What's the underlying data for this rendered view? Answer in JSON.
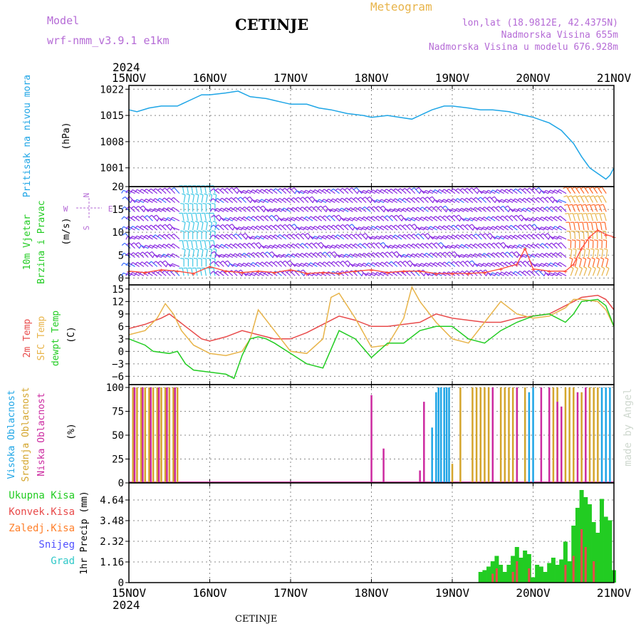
{
  "header": {
    "model_label": "Model",
    "model_name": "wrf-nmm_v3.9.1 e1km",
    "station": "CETINJE",
    "title": "Meteogram",
    "coords": "lon,lat (18.9812E, 42.4375N)",
    "elevation": "Nadmorska Visina 655m",
    "elevation_model": "Nadmorska Visina u modelu 676.928m",
    "footer": "CETINJE",
    "credit": "made by Angel"
  },
  "colors": {
    "pressure": "#1ea5e6",
    "wind_speed": "#ff4a3a",
    "wind_barb": "#8a2be2",
    "wind_barb_alt": "#3a6dff",
    "wind_barb_light": "#3fc8e6",
    "temp2m": "#e84a4a",
    "sfc_temp": "#e8b44a",
    "dewpoint": "#22cc22",
    "cloud_high": "#1ea5e6",
    "cloud_mid": "#d4a52c",
    "cloud_low": "#cc2aa0",
    "precip_total": "#22cc22",
    "precip_conv": "#e84a4a",
    "snow": "#5050ff",
    "label_purple": "#b56bd6"
  },
  "chart_data": {
    "type": "line",
    "x_year": "2024",
    "x_ticks": [
      "15NOV",
      "16NOV",
      "17NOV",
      "18NOV",
      "19NOV",
      "20NOV",
      "21NOV"
    ],
    "x_range_days": [
      0,
      6
    ],
    "panels": [
      {
        "id": "pressure",
        "ylabel": "Pritisak na nivou mora",
        "unit": "(hPa)",
        "ylim": [
          996,
          1023
        ],
        "yticks": [
          1001,
          1008,
          1015,
          1022
        ],
        "series": [
          {
            "name": "Pritisak na nivou mora",
            "x": [
              0,
              0.1,
              0.25,
              0.4,
              0.6,
              0.75,
              0.9,
              1.0,
              1.2,
              1.35,
              1.5,
              1.7,
              1.9,
              2.0,
              2.2,
              2.35,
              2.5,
              2.7,
              2.9,
              3.0,
              3.2,
              3.35,
              3.5,
              3.6,
              3.75,
              3.9,
              4.0,
              4.2,
              4.35,
              4.5,
              4.7,
              4.9,
              5.0,
              5.2,
              5.35,
              5.5,
              5.6,
              5.7,
              5.8,
              5.9,
              5.95,
              6.0
            ],
            "values": [
              1016.5,
              1016,
              1017,
              1017.5,
              1017.5,
              1019,
              1020.5,
              1020.5,
              1021,
              1021.5,
              1020,
              1019.5,
              1018.5,
              1018,
              1018,
              1017,
              1016.5,
              1015.5,
              1015,
              1014.5,
              1015,
              1014.5,
              1014,
              1015,
              1016.5,
              1017.5,
              1017.5,
              1017,
              1016.5,
              1016.5,
              1016,
              1015,
              1014.5,
              1013,
              1011,
              1007.5,
              1004,
              1001,
              999.5,
              998,
              999,
              1001
            ]
          }
        ]
      },
      {
        "id": "wind",
        "ylabel": "10m Vjetar Brzina i Pravac",
        "unit": "(m/s)",
        "ylim": [
          -1.5,
          20
        ],
        "yticks": [
          0,
          5,
          10,
          15,
          20
        ],
        "compass": [
          "N",
          "W",
          "E",
          "S"
        ],
        "series": [
          {
            "name": "Brzina",
            "x": [
              0,
              0.2,
              0.4,
              0.6,
              0.8,
              1.0,
              1.2,
              1.4,
              1.6,
              1.8,
              2.0,
              2.2,
              2.4,
              2.6,
              2.8,
              3.0,
              3.2,
              3.4,
              3.6,
              3.8,
              4.0,
              4.2,
              4.4,
              4.6,
              4.8,
              4.9,
              5.0,
              5.2,
              5.4,
              5.5,
              5.6,
              5.7,
              5.8,
              5.9,
              6.0
            ],
            "values": [
              1.5,
              1.2,
              1.8,
              1.5,
              1.0,
              2.5,
              1.5,
              1.2,
              1.5,
              1.2,
              1.8,
              1.0,
              1.2,
              1.0,
              1.5,
              1.8,
              1.2,
              1.5,
              1.5,
              1.0,
              1.0,
              1.0,
              1.2,
              2.0,
              3.0,
              6.5,
              2.0,
              1.5,
              1.5,
              3,
              6.5,
              9,
              10.5,
              9.5,
              9.0
            ]
          }
        ]
      },
      {
        "id": "temperature",
        "ylabel": "2m Temp SFC Temp dewpt Temp",
        "unit": "(C)",
        "ylim": [
          -8,
          16
        ],
        "yticks": [
          -6,
          -3,
          0,
          3,
          6,
          9,
          12,
          15
        ],
        "series": [
          {
            "name": "2m Temp",
            "x": [
              0,
              0.2,
              0.4,
              0.5,
              0.7,
              0.9,
              1.0,
              1.2,
              1.4,
              1.6,
              1.8,
              2.0,
              2.2,
              2.4,
              2.6,
              2.8,
              3.0,
              3.2,
              3.4,
              3.6,
              3.8,
              4.0,
              4.2,
              4.4,
              4.6,
              4.8,
              5.0,
              5.2,
              5.4,
              5.5,
              5.6,
              5.8,
              5.9,
              6.0
            ],
            "values": [
              5.5,
              6.5,
              8,
              9,
              6,
              3,
              2.5,
              3.5,
              5,
              4,
              3,
              3,
              4.5,
              6.5,
              8.5,
              7.5,
              6,
              6,
              6.5,
              7,
              9,
              8,
              7.5,
              7,
              7,
              8,
              8.5,
              9,
              11,
              12,
              13,
              13.5,
              12.5,
              10
            ]
          },
          {
            "name": "SFC Temp",
            "x": [
              0,
              0.2,
              0.35,
              0.45,
              0.55,
              0.65,
              0.8,
              1.0,
              1.2,
              1.4,
              1.5,
              1.6,
              1.8,
              2.0,
              2.2,
              2.4,
              2.5,
              2.6,
              2.8,
              3.0,
              3.2,
              3.4,
              3.5,
              3.6,
              3.8,
              4.0,
              4.2,
              4.4,
              4.6,
              4.8,
              5.0,
              5.2,
              5.4,
              5.5,
              5.6,
              5.8,
              5.9,
              6.0
            ],
            "values": [
              4,
              5,
              8,
              11.5,
              9,
              5,
              1.5,
              -0.5,
              -1,
              0,
              3,
              10,
              5,
              0,
              -0.5,
              3,
              13,
              14,
              8,
              1,
              1.5,
              8,
              15.5,
              12,
              7,
              3,
              2,
              7,
              12,
              9,
              8,
              8.5,
              10.5,
              12.5,
              12.5,
              12,
              10,
              6
            ]
          },
          {
            "name": "dewpt Temp",
            "x": [
              0,
              0.2,
              0.3,
              0.5,
              0.6,
              0.7,
              0.8,
              1.0,
              1.2,
              1.3,
              1.4,
              1.5,
              1.6,
              1.7,
              1.8,
              2.0,
              2.2,
              2.4,
              2.5,
              2.6,
              2.8,
              3.0,
              3.2,
              3.4,
              3.6,
              3.8,
              4.0,
              4.2,
              4.4,
              4.6,
              4.8,
              5.0,
              5.2,
              5.4,
              5.5,
              5.6,
              5.8,
              5.9,
              6.0
            ],
            "values": [
              3,
              1.5,
              0,
              -0.5,
              0,
              -3,
              -4.5,
              -5,
              -5.5,
              -6.5,
              -1,
              3,
              3.5,
              3,
              2,
              -0.5,
              -3,
              -4,
              0.5,
              5,
              3,
              -1.5,
              2,
              2,
              5,
              6,
              6,
              3,
              2,
              5,
              7,
              8.5,
              9,
              7,
              9,
              12,
              12.5,
              11,
              6
            ]
          }
        ]
      },
      {
        "id": "clouds",
        "ylabel": "Visoka Oblacnost Srednja Oblacnost Niska Oblacnost",
        "unit": "(%)",
        "ylim": [
          0,
          103
        ],
        "yticks": [
          0,
          25,
          50,
          75,
          100
        ],
        "series": [
          {
            "name": "Visoka Oblacnost",
            "x": [
              3.75,
              3.8,
              3.83,
              3.86,
              3.9,
              3.93,
              3.96,
              4.9,
              4.95,
              5.0,
              5.85,
              5.9,
              5.95
            ],
            "values": [
              58,
              95,
              100,
              100,
              100,
              100,
              100,
              85,
              95,
              100,
              100,
              100,
              100
            ]
          },
          {
            "name": "Srednja Oblacnost",
            "x": [
              0.05,
              0.1,
              0.15,
              0.2,
              0.25,
              0.3,
              0.35,
              0.4,
              0.45,
              0.5,
              0.55,
              0.6,
              4.0,
              4.1,
              4.25,
              4.3,
              4.35,
              4.4,
              4.45,
              4.6,
              4.65,
              4.7,
              4.75,
              4.8,
              4.9,
              5.25,
              5.3,
              5.4,
              5.45,
              5.5,
              5.6,
              5.7,
              5.75,
              5.8
            ],
            "values": [
              100,
              100,
              100,
              100,
              100,
              100,
              100,
              100,
              100,
              100,
              100,
              100,
              20,
              100,
              100,
              100,
              100,
              100,
              100,
              100,
              100,
              100,
              100,
              100,
              100,
              100,
              100,
              100,
              100,
              100,
              95,
              100,
              100,
              100
            ]
          },
          {
            "name": "Niska Oblacnost",
            "x": [
              0.07,
              0.17,
              0.27,
              0.37,
              0.47,
              0.57,
              3.0,
              3.15,
              3.6,
              3.65,
              4.5,
              4.8,
              5.1,
              5.2,
              5.3,
              5.35,
              5.55,
              5.65
            ],
            "values": [
              100,
              100,
              100,
              100,
              100,
              100,
              92,
              36,
              13,
              85,
              100,
              100,
              100,
              100,
              85,
              80,
              95,
              100
            ]
          }
        ]
      },
      {
        "id": "precip",
        "ylabel": "1hr Precip",
        "unit": "(mm)",
        "ylim": [
          0,
          5.6
        ],
        "yticks": [
          0,
          1.16,
          2.32,
          3.48,
          4.64
        ],
        "legend": [
          "Ukupna Kisa",
          "Konvek.Kisa",
          "Zaledj.Kisa",
          "Snijeg",
          "Grad"
        ],
        "series": [
          {
            "name": "Ukupna Kisa",
            "x": [
              4.35,
              4.4,
              4.45,
              4.5,
              4.55,
              4.6,
              4.65,
              4.7,
              4.75,
              4.8,
              4.85,
              4.9,
              4.95,
              5.0,
              5.05,
              5.1,
              5.15,
              5.2,
              5.25,
              5.3,
              5.35,
              5.4,
              5.45,
              5.5,
              5.55,
              5.6,
              5.65,
              5.7,
              5.75,
              5.8,
              5.85,
              5.9,
              5.95,
              6.0
            ],
            "values": [
              0.6,
              0.7,
              0.9,
              1.2,
              1.5,
              1.0,
              0.6,
              1.0,
              1.5,
              2.0,
              1.4,
              1.8,
              1.6,
              0.3,
              1.0,
              0.9,
              0.6,
              1.1,
              1.4,
              1.0,
              1.3,
              2.3,
              1.2,
              3.2,
              4.2,
              5.2,
              4.8,
              4.4,
              3.4,
              2.8,
              4.7,
              3.7,
              3.5,
              0.7
            ]
          },
          {
            "name": "Konvek.Kisa",
            "x": [
              4.5,
              4.55,
              4.75,
              4.8,
              4.95,
              5.4,
              5.5,
              5.6,
              5.65,
              5.75
            ],
            "values": [
              0.5,
              0.8,
              0.6,
              1.2,
              0.8,
              1.0,
              1.5,
              3.0,
              2.0,
              1.2
            ]
          }
        ]
      }
    ]
  }
}
